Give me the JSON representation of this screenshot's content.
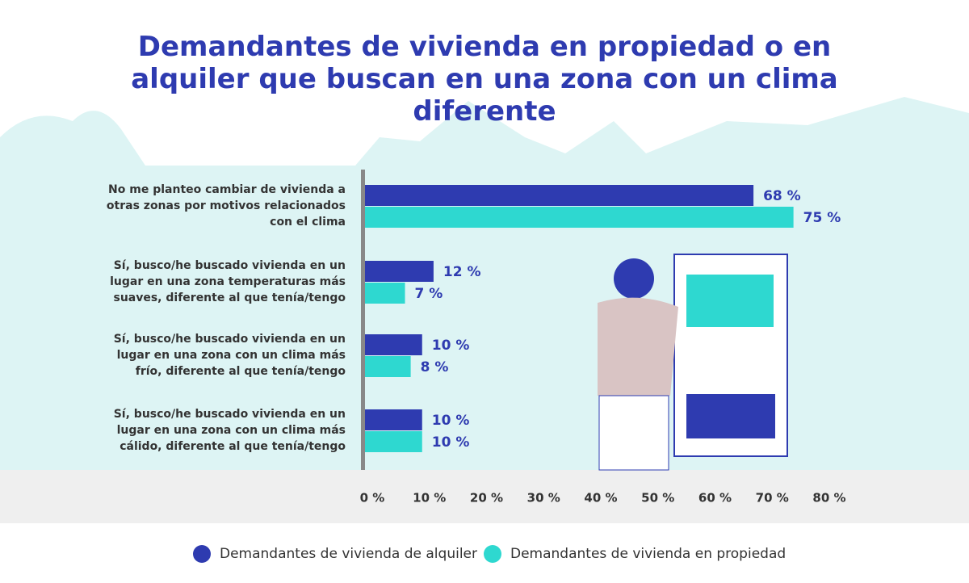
{
  "chart_data": {
    "type": "hbar",
    "title": "Demandantes de vivienda en propiedad o en alquiler que buscan en una zona con un clima diferente",
    "categories": [
      "No me planteo cambiar de vivienda a otras zonas por motivos relacionados con el clima",
      "Sí, busco/he buscado vivienda en un lugar en una zona temperaturas más suaves, diferente al que tenía/tengo",
      "Sí, busco/he buscado vivienda en un lugar en una zona con un clima más frío, diferente al que tenía/tengo",
      "Sí, busco/he buscado vivienda en un lugar en una zona con un clima más cálido, diferente al que tenía/tengo"
    ],
    "series": [
      {
        "name": "Demandantes de vivienda de alquiler",
        "color": "#2e3bb0",
        "values": [
          68,
          12,
          10,
          10
        ],
        "value_labels": [
          "68 %",
          "12 %",
          "10 %",
          "10 %"
        ]
      },
      {
        "name": "Demandantes de vivienda en propiedad",
        "color": "#2ed8d0",
        "values": [
          75,
          7,
          8,
          10
        ],
        "value_labels": [
          "75 %",
          "7 %",
          "8 %",
          "10 %"
        ]
      }
    ],
    "xlim": [
      0,
      80
    ],
    "xticks": [
      {
        "value": 0,
        "label": "0 %"
      },
      {
        "value": 10,
        "label": "10 %"
      },
      {
        "value": 20,
        "label": "20 %"
      },
      {
        "value": 30,
        "label": "30 %"
      },
      {
        "value": 40,
        "label": "40 %"
      },
      {
        "value": 50,
        "label": "50 %"
      },
      {
        "value": 60,
        "label": "60 %"
      },
      {
        "value": 70,
        "label": "70 %"
      },
      {
        "value": 80,
        "label": "80 %"
      }
    ]
  }
}
